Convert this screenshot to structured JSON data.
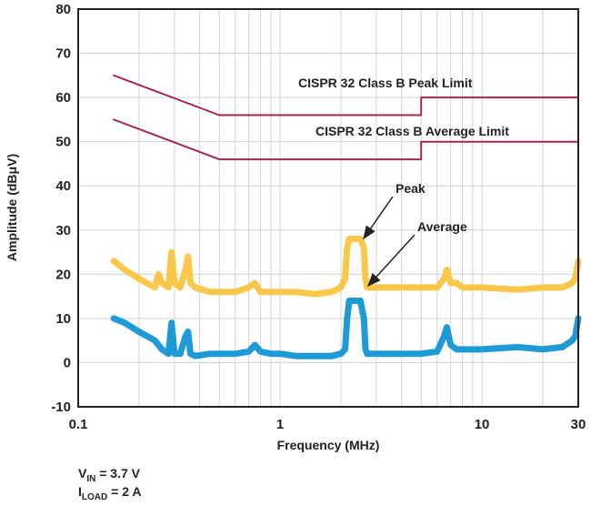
{
  "chart_data": {
    "type": "line",
    "x_scale": "log",
    "xlabel": "Frequency (MHz)",
    "ylabel": "Amplitude (dBμV)",
    "xlim": [
      0.1,
      30
    ],
    "ylim": [
      -10,
      80
    ],
    "x_ticks": [
      {
        "value": 0.1,
        "label": "0.1"
      },
      {
        "value": 1,
        "label": "1"
      },
      {
        "value": 10,
        "label": "10"
      },
      {
        "value": 30,
        "label": "30"
      }
    ],
    "y_ticks": [
      -10,
      0,
      10,
      20,
      30,
      40,
      50,
      60,
      70,
      80
    ],
    "grid": true,
    "colors": {
      "limit": "#a3284f",
      "peak": "#f9c84a",
      "average": "#1e9bd7",
      "grid": "#d3d3d3"
    },
    "series": [
      {
        "name": "CISPR 32 Class B Peak Limit",
        "color": "#a3284f",
        "x": [
          0.15,
          0.5,
          5,
          5,
          30
        ],
        "y": [
          65,
          56,
          56,
          60,
          60
        ]
      },
      {
        "name": "CISPR 32 Class B Average Limit",
        "color": "#a3284f",
        "x": [
          0.15,
          0.5,
          5,
          5,
          30
        ],
        "y": [
          55,
          46,
          46,
          50,
          50
        ]
      },
      {
        "name": "Peak",
        "color": "#f9c84a",
        "x": [
          0.15,
          0.17,
          0.2,
          0.24,
          0.25,
          0.26,
          0.28,
          0.29,
          0.3,
          0.32,
          0.34,
          0.35,
          0.36,
          0.38,
          0.45,
          0.5,
          0.6,
          0.7,
          0.75,
          0.8,
          0.9,
          1.0,
          1.2,
          1.5,
          1.8,
          2.0,
          2.1,
          2.15,
          2.2,
          2.5,
          2.6,
          2.65,
          2.7,
          3.0,
          4.0,
          5.0,
          6.0,
          6.5,
          6.7,
          7.0,
          7.5,
          8.0,
          10,
          15,
          20,
          25,
          28,
          29,
          30
        ],
        "y": [
          23,
          21,
          19,
          17,
          20,
          18,
          17,
          25,
          18,
          17,
          21,
          24,
          18,
          17,
          16,
          16,
          16,
          17,
          18,
          16,
          16,
          16,
          16,
          15.5,
          16,
          17,
          19,
          26,
          28,
          28,
          26,
          19,
          17,
          17,
          17,
          17,
          17,
          19,
          21,
          18,
          18,
          17,
          17,
          16.5,
          17,
          17,
          18,
          19,
          23
        ]
      },
      {
        "name": "Average",
        "color": "#1e9bd7",
        "x": [
          0.15,
          0.17,
          0.2,
          0.24,
          0.26,
          0.28,
          0.29,
          0.3,
          0.32,
          0.34,
          0.35,
          0.36,
          0.38,
          0.45,
          0.5,
          0.6,
          0.7,
          0.75,
          0.8,
          0.9,
          1.0,
          1.2,
          1.5,
          1.8,
          2.0,
          2.1,
          2.15,
          2.2,
          2.5,
          2.6,
          2.65,
          2.7,
          3.0,
          4.0,
          5.0,
          6.0,
          6.5,
          6.7,
          7.0,
          7.5,
          8.0,
          10,
          15,
          20,
          25,
          28,
          29,
          30
        ],
        "y": [
          10,
          9,
          7,
          5,
          3,
          2,
          9,
          2,
          2,
          6,
          7,
          2,
          1.5,
          2,
          2,
          2,
          2.5,
          4,
          2.5,
          2,
          2,
          1.5,
          1.5,
          1.5,
          2,
          3,
          10,
          14,
          14,
          10,
          3,
          2,
          2,
          2,
          2,
          2.5,
          6,
          8,
          4,
          3,
          3,
          3,
          3.5,
          3,
          3.5,
          5,
          6,
          10
        ]
      }
    ],
    "annotations": [
      {
        "text": "CISPR 32 Class B Peak Limit"
      },
      {
        "text": "CISPR 32 Class B Average Limit"
      },
      {
        "text": "Peak"
      },
      {
        "text": "Average"
      }
    ]
  },
  "conditions": {
    "vin_sym": "V",
    "vin_sub": "IN",
    "vin_value": " = 3.7 V",
    "iload_sym": "I",
    "iload_sub": "LOAD",
    "iload_value": " = 2 A"
  }
}
